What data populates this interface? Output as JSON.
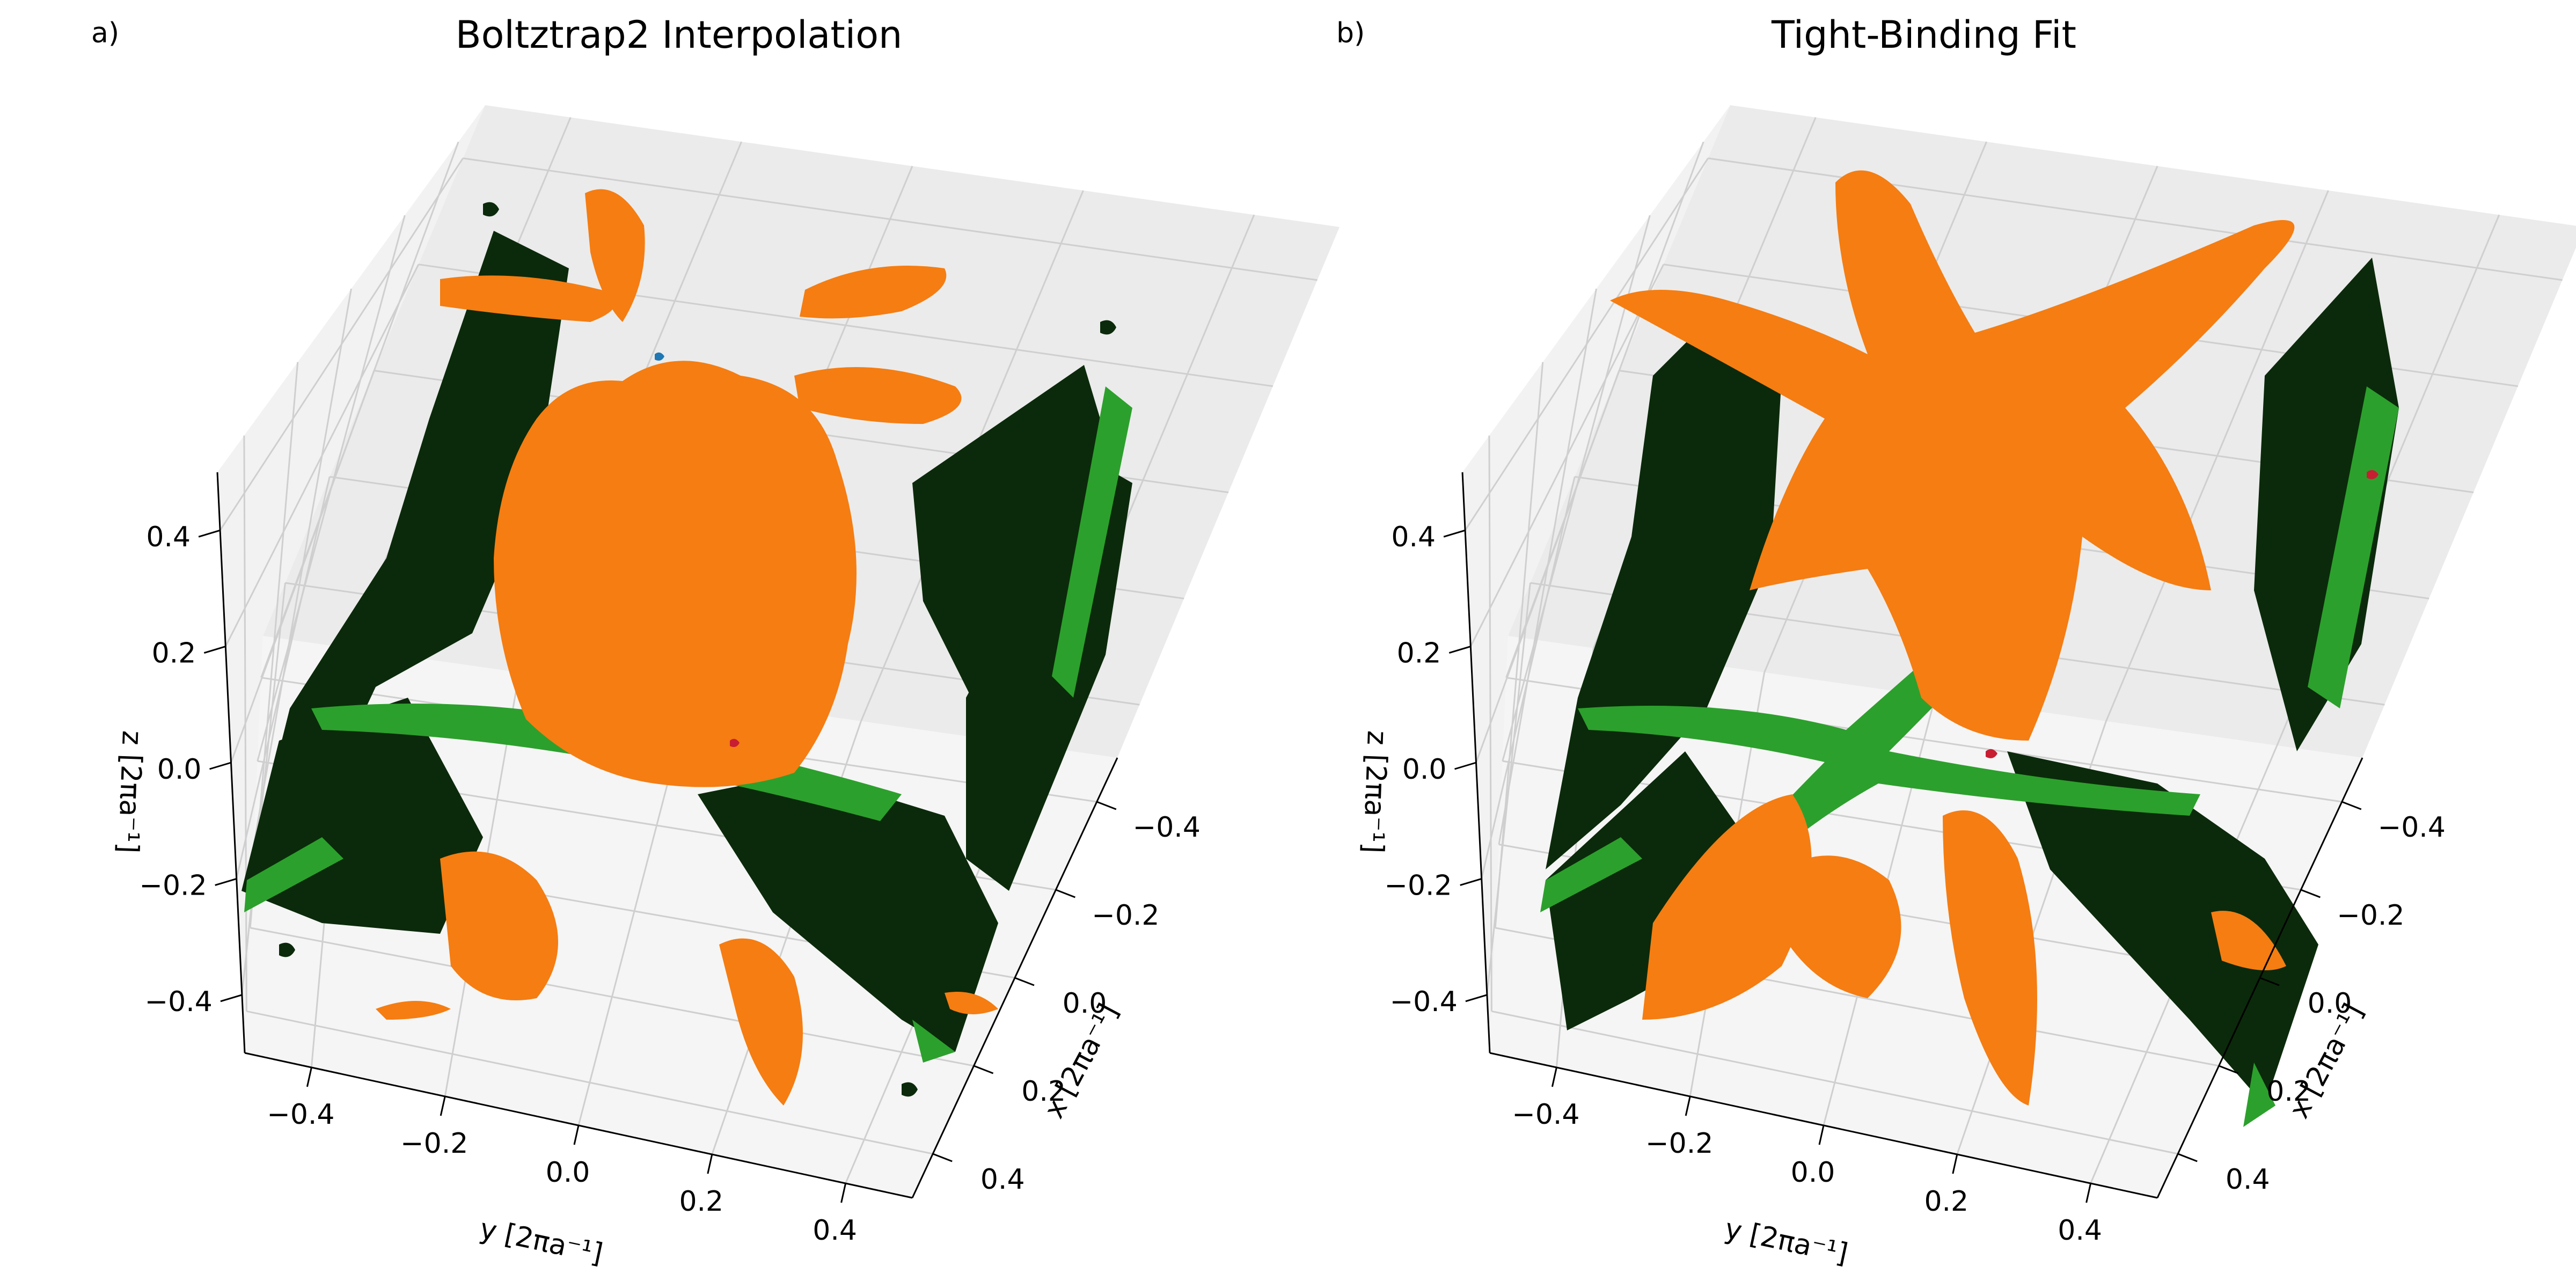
{
  "figure": {
    "panels": [
      {
        "id": "a",
        "letter": "a)",
        "title": "Boltztrap2 Interpolation"
      },
      {
        "id": "b",
        "letter": "b)",
        "title": "Tight-Binding Fit"
      }
    ]
  },
  "chart_data": [
    {
      "type": "3d-isosurface",
      "title": "Boltztrap2 Interpolation",
      "panel_label": "a)",
      "xlabel": "x [2πa⁻¹]",
      "ylabel": "y [2πa⁻¹]",
      "zlabel": "z [2πa⁻¹]",
      "xlim": [
        -0.5,
        0.5
      ],
      "ylim": [
        -0.5,
        0.5
      ],
      "zlim": [
        -0.5,
        0.5
      ],
      "x_ticks": [
        -0.4,
        -0.2,
        0.0,
        0.2,
        0.4
      ],
      "y_ticks": [
        -0.4,
        -0.2,
        0.0,
        0.2,
        0.4
      ],
      "z_ticks": [
        -0.4,
        -0.2,
        0.0,
        0.2,
        0.4
      ],
      "x_tick_labels": [
        "−0.4",
        "−0.2",
        "0.0",
        "0.2",
        "0.4"
      ],
      "y_tick_labels": [
        "−0.4",
        "−0.2",
        "0.0",
        "0.2",
        "0.4"
      ],
      "z_tick_labels": [
        "−0.4",
        "−0.2",
        "0.0",
        "0.2",
        "0.4"
      ],
      "grid": true,
      "surface_colors": {
        "orange": "#f57d12",
        "green": "#2ca02c",
        "dark_green": "#0b2a0b",
        "red": "#c81e32",
        "blue": "#1f77b4"
      }
    },
    {
      "type": "3d-isosurface",
      "title": "Tight-Binding Fit",
      "panel_label": "b)",
      "xlabel": "x [2πa⁻¹]",
      "ylabel": "y [2πa⁻¹]",
      "zlabel": "z [2πa⁻¹]",
      "xlim": [
        -0.5,
        0.5
      ],
      "ylim": [
        -0.5,
        0.5
      ],
      "zlim": [
        -0.5,
        0.5
      ],
      "x_ticks": [
        -0.4,
        -0.2,
        0.0,
        0.2,
        0.4
      ],
      "y_ticks": [
        -0.4,
        -0.2,
        0.0,
        0.2,
        0.4
      ],
      "z_ticks": [
        -0.4,
        -0.2,
        0.0,
        0.2,
        0.4
      ],
      "x_tick_labels": [
        "−0.4",
        "−0.2",
        "0.0",
        "0.2",
        "0.4"
      ],
      "y_tick_labels": [
        "−0.4",
        "−0.2",
        "0.0",
        "0.2",
        "0.4"
      ],
      "z_tick_labels": [
        "−0.4",
        "−0.2",
        "0.0",
        "0.2",
        "0.4"
      ],
      "grid": true,
      "surface_colors": {
        "orange": "#f57d12",
        "green": "#2ca02c",
        "dark_green": "#0b2a0b",
        "red": "#c81e32"
      }
    }
  ]
}
